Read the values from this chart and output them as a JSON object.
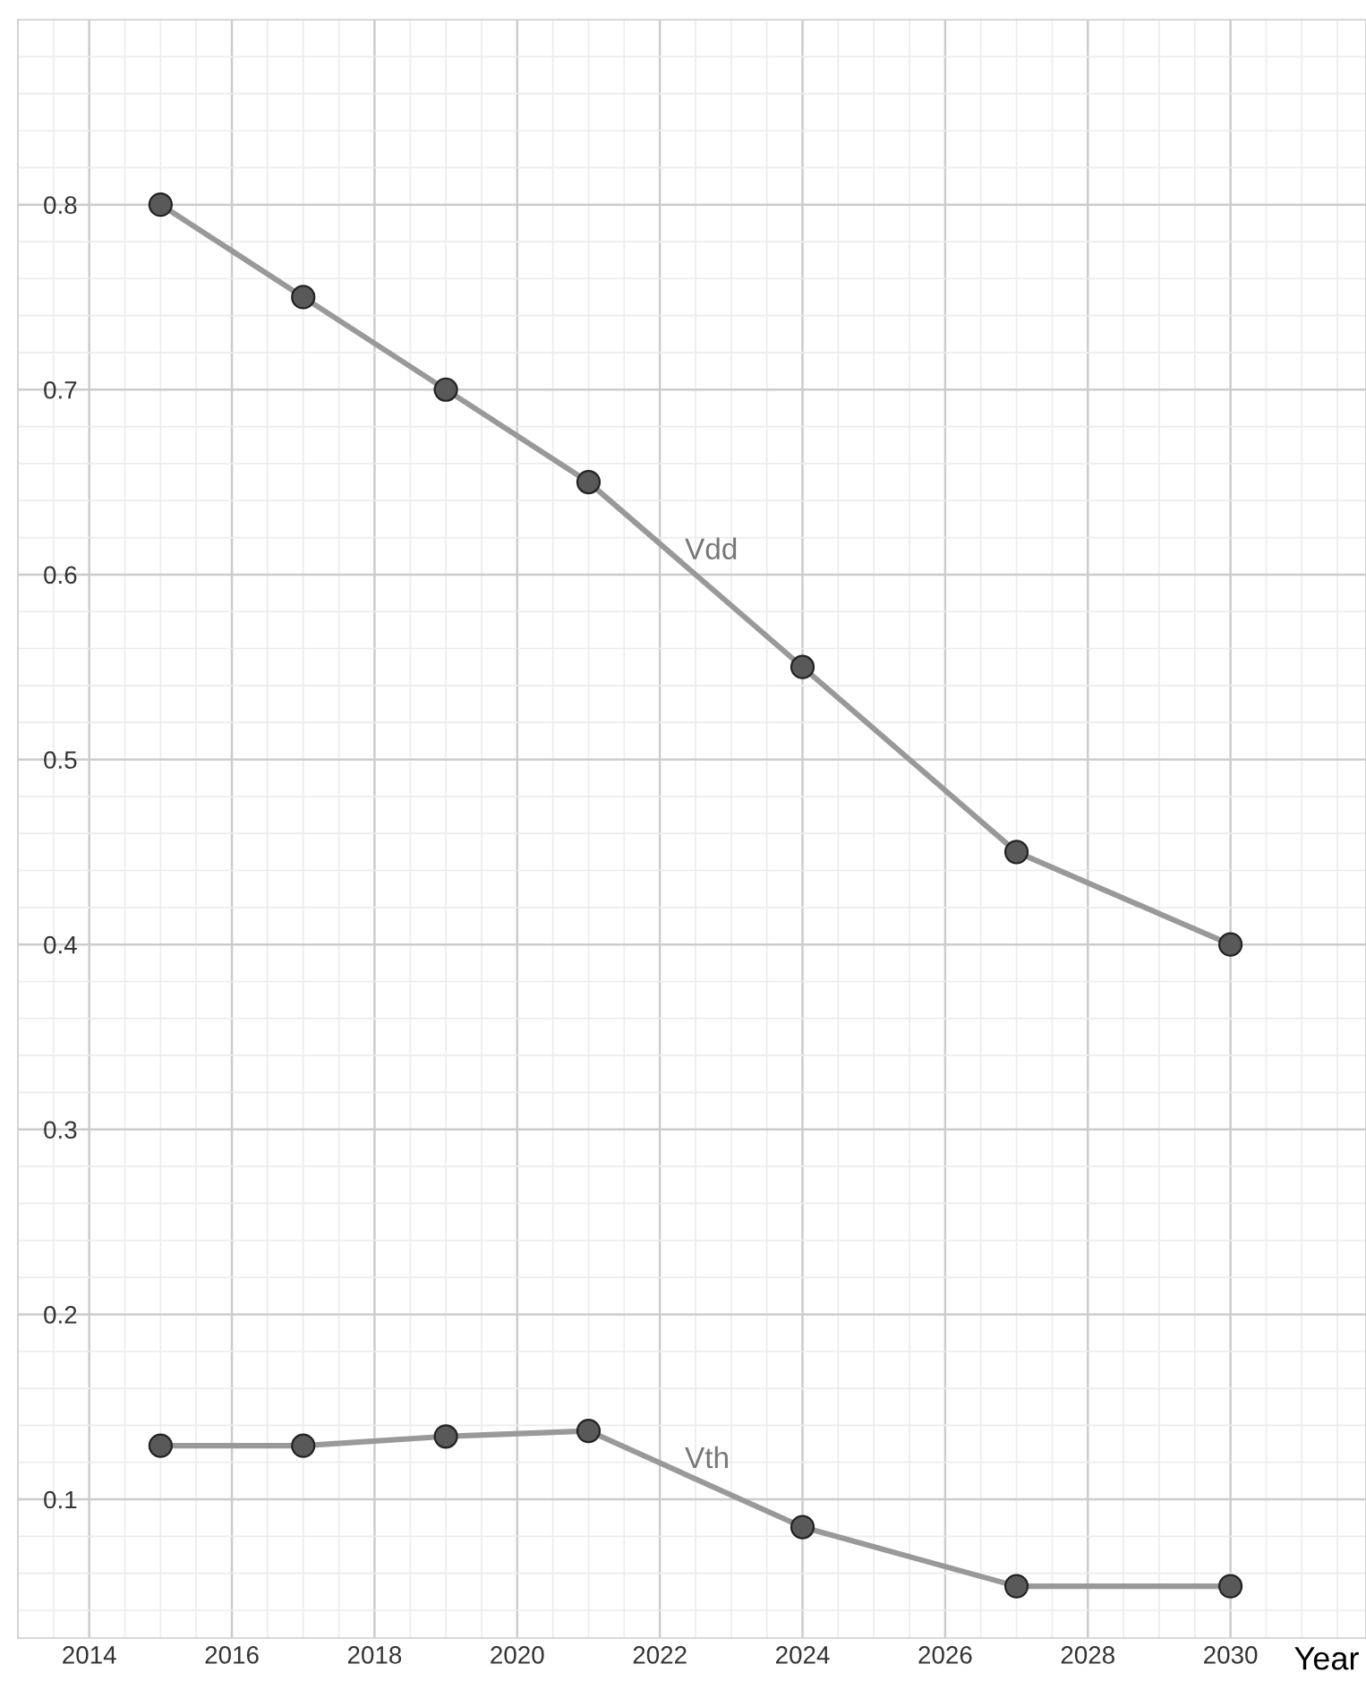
{
  "chart_data": {
    "type": "line",
    "xlabel": "Year",
    "series": [
      {
        "name": "Vdd",
        "color": "#999999",
        "x": [
          2015,
          2017,
          2019,
          2021,
          2024,
          2027,
          2030
        ],
        "values": [
          0.8,
          0.75,
          0.7,
          0.65,
          0.55,
          0.45,
          0.4
        ]
      },
      {
        "name": "Vth",
        "color": "#999999",
        "x": [
          2015,
          2017,
          2019,
          2021,
          2024,
          2027,
          2030
        ],
        "values": [
          0.129,
          0.129,
          0.134,
          0.137,
          0.085,
          0.053,
          0.053
        ]
      }
    ],
    "xlim": [
      2013,
      2031.9
    ],
    "xticks": [
      2014,
      2016,
      2018,
      2020,
      2022,
      2024,
      2026,
      2028,
      2030
    ],
    "ylim": [
      0.025,
      0.9
    ],
    "yticks": [
      0.1,
      0.2,
      0.3,
      0.4,
      0.5,
      0.6,
      0.7,
      0.8
    ],
    "grid": true,
    "marker": "circle",
    "line_style": "solid",
    "legend": false
  }
}
